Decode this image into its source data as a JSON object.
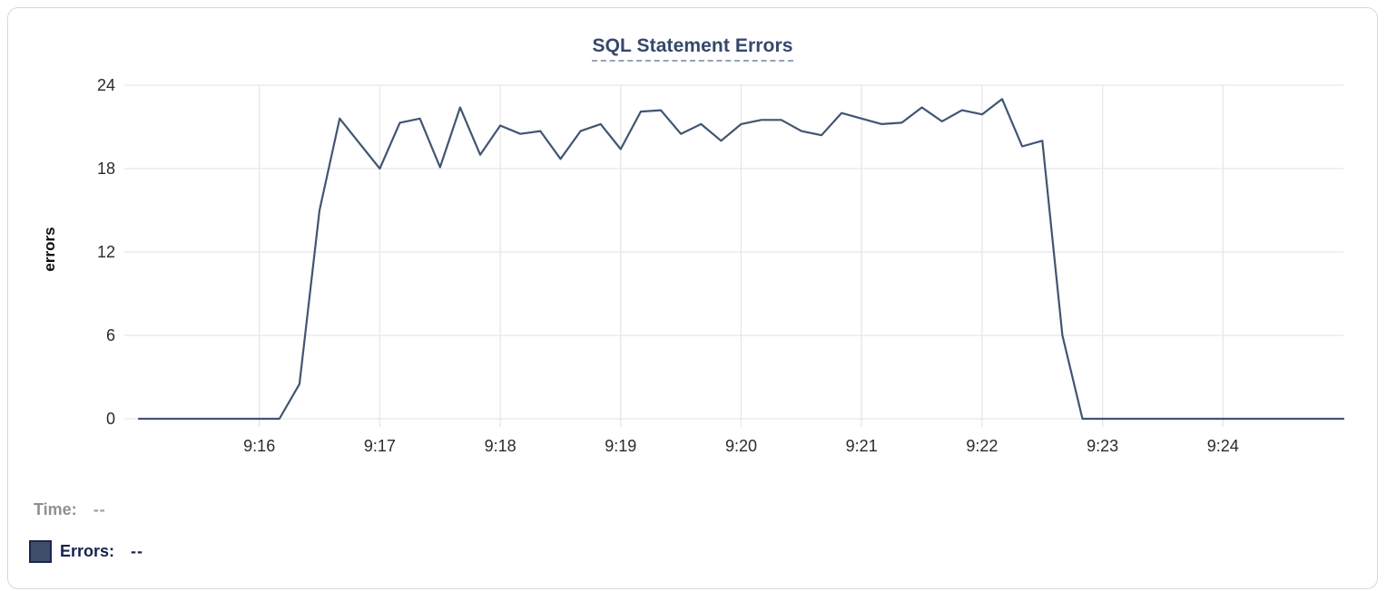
{
  "chart": {
    "title": "SQL Statement Errors",
    "ylabel": "errors"
  },
  "legend": {
    "time_label": "Time:",
    "time_value": "--",
    "errors_label": "Errors:",
    "errors_value": "--"
  },
  "colors": {
    "line": "#415571",
    "title": "#36486a",
    "title_underline": "#97a2b8",
    "grid": "#e7e7e9",
    "card_border": "#d6d7d9",
    "swatch_fill": "#3e4f6b",
    "swatch_border": "#1c2749",
    "time_text": "#8f9094",
    "time_value": "#9fa0a4",
    "errors_text": "#17234e"
  },
  "chart_data": {
    "type": "line",
    "title": "SQL Statement Errors",
    "xlabel": "",
    "ylabel": "errors",
    "ylim": [
      0,
      24
    ],
    "y_ticks": [
      0,
      6,
      12,
      18,
      24
    ],
    "grid": true,
    "legend_position": "bottom-left",
    "x_start_time": "9:15:00",
    "x_end_time": "9:25:00",
    "x_range_seconds": [
      0,
      600
    ],
    "x_ticks": [
      {
        "label": "9:16",
        "sec": 60
      },
      {
        "label": "9:17",
        "sec": 120
      },
      {
        "label": "9:18",
        "sec": 180
      },
      {
        "label": "9:19",
        "sec": 240
      },
      {
        "label": "9:20",
        "sec": 300
      },
      {
        "label": "9:21",
        "sec": 360
      },
      {
        "label": "9:22",
        "sec": 420
      },
      {
        "label": "9:23",
        "sec": 480
      },
      {
        "label": "9:24",
        "sec": 540
      }
    ],
    "series": [
      {
        "name": "Errors",
        "color": "#415571",
        "points_sec_value": [
          [
            0,
            0
          ],
          [
            10,
            0
          ],
          [
            20,
            0
          ],
          [
            30,
            0
          ],
          [
            40,
            0
          ],
          [
            50,
            0
          ],
          [
            60,
            0
          ],
          [
            70,
            0
          ],
          [
            80,
            2.5
          ],
          [
            90,
            15
          ],
          [
            100,
            21.6
          ],
          [
            110,
            19.8
          ],
          [
            120,
            18
          ],
          [
            130,
            21.3
          ],
          [
            140,
            21.6
          ],
          [
            150,
            18.1
          ],
          [
            160,
            22.4
          ],
          [
            170,
            19
          ],
          [
            180,
            21.1
          ],
          [
            190,
            20.5
          ],
          [
            200,
            20.7
          ],
          [
            210,
            18.7
          ],
          [
            220,
            20.7
          ],
          [
            230,
            21.2
          ],
          [
            240,
            19.4
          ],
          [
            250,
            22.1
          ],
          [
            260,
            22.2
          ],
          [
            270,
            20.5
          ],
          [
            280,
            21.2
          ],
          [
            290,
            20
          ],
          [
            300,
            21.2
          ],
          [
            310,
            21.5
          ],
          [
            320,
            21.5
          ],
          [
            330,
            20.7
          ],
          [
            340,
            20.4
          ],
          [
            350,
            22
          ],
          [
            360,
            21.6
          ],
          [
            370,
            21.2
          ],
          [
            380,
            21.3
          ],
          [
            390,
            22.4
          ],
          [
            400,
            21.4
          ],
          [
            410,
            22.2
          ],
          [
            420,
            21.9
          ],
          [
            430,
            23
          ],
          [
            440,
            19.6
          ],
          [
            450,
            20
          ],
          [
            460,
            6
          ],
          [
            470,
            0
          ],
          [
            480,
            0
          ],
          [
            490,
            0
          ],
          [
            500,
            0
          ],
          [
            510,
            0
          ],
          [
            520,
            0
          ],
          [
            530,
            0
          ],
          [
            540,
            0
          ],
          [
            550,
            0
          ],
          [
            560,
            0
          ],
          [
            570,
            0
          ],
          [
            580,
            0
          ],
          [
            590,
            0
          ],
          [
            600,
            0
          ]
        ]
      }
    ]
  }
}
